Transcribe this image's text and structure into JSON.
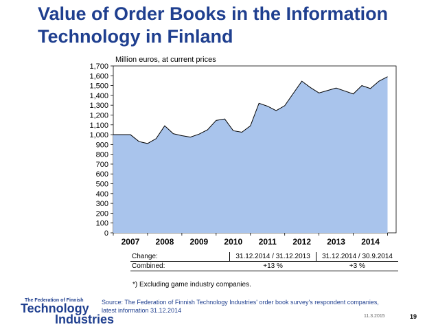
{
  "title_line1": "Value of Order Books in the Information",
  "title_line2": "Technology in Finland",
  "chart_data": {
    "type": "area",
    "title": "Value of Order Books in the Information Technology in Finland",
    "ylabel": "Million euros, at current prices",
    "ylim": [
      0,
      1700
    ],
    "yticks": [
      "0",
      "100",
      "200",
      "300",
      "400",
      "500",
      "600",
      "700",
      "800",
      "900",
      "1,000",
      "1,100",
      "1,200",
      "1,300",
      "1,400",
      "1,500",
      "1,600",
      "1,700"
    ],
    "year_labels": [
      "2007",
      "2008",
      "2009",
      "2010",
      "2011",
      "2012",
      "2013",
      "2014"
    ],
    "x_start": 2006.75,
    "x_end": 2015.0,
    "x": [
      2006.75,
      2007.0,
      2007.25,
      2007.5,
      2007.75,
      2008.0,
      2008.25,
      2008.5,
      2008.75,
      2009.0,
      2009.25,
      2009.5,
      2009.75,
      2010.0,
      2010.25,
      2010.5,
      2010.75,
      2011.0,
      2011.25,
      2011.5,
      2011.75,
      2012.0,
      2012.25,
      2012.5,
      2012.75,
      2013.0,
      2013.25,
      2013.5,
      2013.75,
      2014.0,
      2014.25,
      2014.5,
      2014.75
    ],
    "values": [
      1000,
      1000,
      1000,
      930,
      910,
      960,
      1090,
      1010,
      990,
      975,
      1005,
      1050,
      1145,
      1160,
      1040,
      1025,
      1090,
      1320,
      1290,
      1245,
      1295,
      1420,
      1545,
      1480,
      1425,
      1450,
      1475,
      1445,
      1415,
      1500,
      1470,
      1545,
      1590
    ],
    "grid": false,
    "fill_color": "#a9c4ec",
    "line_color": "#000000"
  },
  "change_table": {
    "rows": [
      {
        "label": "Change:",
        "c1": "31.12.2014 / 31.12.2013",
        "c2": "31.12.2014 / 30.9.2014"
      },
      {
        "label": "Combined:",
        "c1": "+13 %",
        "c2": "+3 %"
      }
    ]
  },
  "footnote": "*) Excluding game industry companies.",
  "logo": {
    "line1": "The Federation of Finnish",
    "line2": "Technology",
    "line3": "Industries"
  },
  "source_line1": "Source: The Federation of Finnish Technology Industries' order book survey's respondent companies,",
  "source_line2": "latest information 31.12.2014",
  "date": "11.3.2015",
  "page_number": "19"
}
